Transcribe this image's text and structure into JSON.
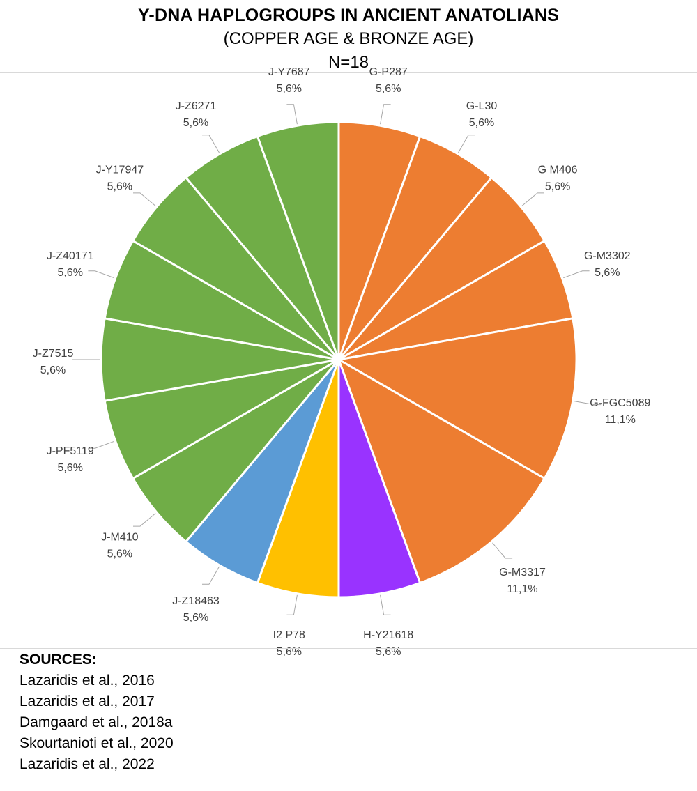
{
  "chart_data": {
    "type": "pie",
    "title": "Y-DNA HAPLOGROUPS IN ANCIENT ANATOLIANS",
    "subtitle": "(COPPER AGE & BRONZE AGE)",
    "sample_size": "N=18",
    "slices": [
      {
        "name": "G-P287",
        "label_value": "5,6%",
        "count": 1,
        "percent": 5.6,
        "color": "#ed7d31"
      },
      {
        "name": "G-L30",
        "label_value": "5,6%",
        "count": 1,
        "percent": 5.6,
        "color": "#ed7d31"
      },
      {
        "name": "G M406",
        "label_value": "5,6%",
        "count": 1,
        "percent": 5.6,
        "color": "#ed7d31"
      },
      {
        "name": "G-M3302",
        "label_value": "5,6%",
        "count": 1,
        "percent": 5.6,
        "color": "#ed7d31"
      },
      {
        "name": "G-FGC5089",
        "label_value": "11,1%",
        "count": 2,
        "percent": 11.1,
        "color": "#ed7d31"
      },
      {
        "name": "G-M3317",
        "label_value": "11,1%",
        "count": 2,
        "percent": 11.1,
        "color": "#ed7d31"
      },
      {
        "name": "H-Y21618",
        "label_value": "5,6%",
        "count": 1,
        "percent": 5.6,
        "color": "#9933ff"
      },
      {
        "name": "I2 P78",
        "label_value": "5,6%",
        "count": 1,
        "percent": 5.6,
        "color": "#ffc000"
      },
      {
        "name": "J-Z18463",
        "label_value": "5,6%",
        "count": 1,
        "percent": 5.6,
        "color": "#5b9bd5"
      },
      {
        "name": "J-M410",
        "label_value": "5,6%",
        "count": 1,
        "percent": 5.6,
        "color": "#70ad47"
      },
      {
        "name": "J-PF5119",
        "label_value": "5,6%",
        "count": 1,
        "percent": 5.6,
        "color": "#70ad47"
      },
      {
        "name": "J-Z7515",
        "label_value": "5,6%",
        "count": 1,
        "percent": 5.6,
        "color": "#70ad47"
      },
      {
        "name": "J-Z40171",
        "label_value": "5,6%",
        "count": 1,
        "percent": 5.6,
        "color": "#70ad47"
      },
      {
        "name": "J-Y17947",
        "label_value": "5,6%",
        "count": 1,
        "percent": 5.6,
        "color": "#70ad47"
      },
      {
        "name": "J-Z6271",
        "label_value": "5,6%",
        "count": 1,
        "percent": 5.6,
        "color": "#70ad47"
      },
      {
        "name": "J-Y7687",
        "label_value": "5,6%",
        "count": 1,
        "percent": 5.6,
        "color": "#70ad47"
      }
    ],
    "legend": "none"
  },
  "sources": {
    "heading": "SOURCES:",
    "items": [
      "Lazaridis et al., 2016",
      "Lazaridis et al., 2017",
      "Damgaard et al., 2018a",
      "Skourtanioti et al., 2020",
      "Lazaridis et al., 2022"
    ]
  }
}
